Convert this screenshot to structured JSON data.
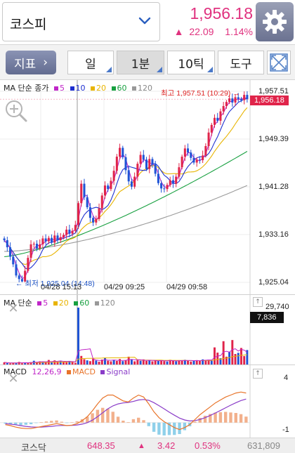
{
  "header": {
    "market_name": "코스피",
    "price": "1,956.18",
    "change_value": "22.09",
    "change_pct": "1.14%",
    "up_symbol": "▲",
    "accent": "#e0327f"
  },
  "toolbar": {
    "indicator_label": "지표",
    "indicator_arrow": "›",
    "period_day": "일",
    "period_minute": "1분",
    "tick": "10틱",
    "tools": "도구"
  },
  "price_panel": {
    "legend": {
      "prefix": "MA 단순 종가",
      "ma": [
        "5",
        "10",
        "20",
        "60",
        "120"
      ],
      "colors": [
        "#c026c8",
        "#1e2fd0",
        "#e8b400",
        "#18a040",
        "#999999"
      ]
    },
    "axis": [
      "1,957.51",
      "1,949.39",
      "1,941.28",
      "1,933.16",
      "1,925.04"
    ],
    "current_price": "1,956.18",
    "high_note": "최고 1,957.51 (10:29) →",
    "low_note": "← 최저 1,925.04 (14:48)",
    "time_labels": [
      "04/28 15:13",
      "04/29 09:25",
      "04/29 09:58"
    ]
  },
  "volume_panel": {
    "legend_prefix": "MA 단순",
    "ma": [
      "5",
      "20",
      "60",
      "120"
    ],
    "colors": [
      "#c026c8",
      "#e8b400",
      "#18a040",
      "#999999"
    ],
    "axis_top": "29,740",
    "current_volume": "7,836"
  },
  "macd_panel": {
    "legend_prefix": "MACD",
    "params": "12,26,9",
    "macd_label": "MACD",
    "signal_label": "Signal",
    "axis_top": "4",
    "axis_bottom": "-1"
  },
  "footer": {
    "name": "코스닥",
    "price": "648.35",
    "up_symbol": "▲",
    "change": "3.42",
    "pct": "0.53%",
    "volume": "631,809"
  },
  "chart_data": {
    "type": "candlestick",
    "title": "",
    "ylim": [
      1925.04,
      1957.51
    ],
    "y_ticks": [
      1957.51,
      1949.39,
      1941.28,
      1933.16,
      1925.04
    ],
    "x_labels": [
      "04/28 15:13",
      "04/29 09:25",
      "04/29 09:58"
    ],
    "high": 1957.51,
    "low": 1925.04,
    "last": 1956.18,
    "close_path": [
      1932.2,
      1931.0,
      1929.4,
      1928.1,
      1926.2,
      1925.6,
      1925.2,
      1927.0,
      1929.2,
      1931.5,
      1931.6,
      1930.8,
      1931.5,
      1932.5,
      1932.0,
      1932.6,
      1931.8,
      1933.0,
      1932.2,
      1932.7,
      1933.1,
      1934.0,
      1933.3,
      1933.8,
      1934.8,
      1938.5,
      1941.8,
      1939.5,
      1937.8,
      1936.0,
      1935.2,
      1935.8,
      1937.6,
      1939.8,
      1941.5,
      1940.9,
      1942.3,
      1944.0,
      1946.4,
      1947.9,
      1946.3,
      1944.1,
      1942.2,
      1941.3,
      1943.0,
      1945.2,
      1946.7,
      1945.9,
      1944.3,
      1946.0,
      1945.1,
      1943.5,
      1941.9,
      1941.0,
      1940.9,
      1941.6,
      1942.4,
      1941.8,
      1943.0,
      1944.6,
      1946.4,
      1947.8,
      1947.1,
      1946.2,
      1945.4,
      1945.9,
      1945.8,
      1946.6,
      1948.2,
      1950.5,
      1951.8,
      1953.0,
      1952.5,
      1954.1,
      1955.0,
      1955.7,
      1956.3,
      1955.6,
      1956.5,
      1956.2,
      1956.0,
      1956.9,
      1956.18
    ],
    "ma5_end": 1955.4,
    "ma10_end": 1953.3,
    "ma20_end": 1950.6,
    "ma60_end": 1947.3,
    "ma120_end": 1941.5,
    "volume": {
      "ylim": [
        0,
        29740
      ],
      "last": 7836,
      "bars": [
        1500,
        1100,
        900,
        1300,
        1200,
        1700,
        1000,
        1400,
        1100,
        1600,
        2300,
        1500,
        2000,
        1700,
        1400,
        2700,
        1600,
        2500,
        1900,
        2300,
        1700,
        1500,
        2200,
        1800,
        1200,
        29740,
        4800,
        3100,
        2500,
        2100,
        3400,
        2400,
        1800,
        2900,
        3700,
        2300,
        2000,
        2700,
        2200,
        3200,
        2100,
        2500,
        4400,
        2900,
        2000,
        2600,
        2300,
        3000,
        2200,
        2600,
        2000,
        2400,
        2200,
        2700,
        2100,
        1900,
        2800,
        2300,
        2000,
        2600,
        2300,
        2800,
        2500,
        1900,
        2200,
        2600,
        2400,
        3000,
        2700,
        2900,
        2400,
        9200,
        6500,
        3600,
        12400,
        4400,
        6900,
        13000,
        5800,
        6400,
        8900,
        4700,
        7836
      ]
    },
    "macd": {
      "ylim": [
        -1.3,
        4.4
      ],
      "macd": [
        -0.2,
        -0.3,
        -0.45,
        -0.55,
        -0.6,
        -0.6,
        -0.5,
        -0.4,
        -0.3,
        -0.2,
        -0.1,
        -0.2,
        -0.3,
        -0.25,
        -0.1,
        0.2,
        0.6,
        1.2,
        1.9,
        2.5,
        2.8,
        2.8,
        2.5,
        2.2,
        2.1,
        2.5,
        2.8,
        2.6,
        1.9,
        1.1,
        0.5,
        0.1,
        -0.2,
        -0.5,
        -0.7,
        -0.5,
        -0.2,
        0.3,
        0.8,
        1.2,
        1.6,
        2.0,
        2.3,
        2.6,
        2.8,
        3.0,
        3.1,
        3.0
      ],
      "signal": [
        -0.1,
        -0.15,
        -0.22,
        -0.3,
        -0.38,
        -0.44,
        -0.46,
        -0.45,
        -0.42,
        -0.38,
        -0.32,
        -0.29,
        -0.29,
        -0.28,
        -0.24,
        -0.15,
        0.0,
        0.25,
        0.6,
        1.0,
        1.4,
        1.7,
        1.9,
        2.0,
        2.05,
        2.15,
        2.3,
        2.35,
        2.26,
        2.03,
        1.72,
        1.4,
        1.06,
        0.75,
        0.46,
        0.27,
        0.17,
        0.2,
        0.32,
        0.5,
        0.72,
        0.98,
        1.24,
        1.51,
        1.77,
        2.02,
        2.24,
        2.39
      ]
    }
  }
}
